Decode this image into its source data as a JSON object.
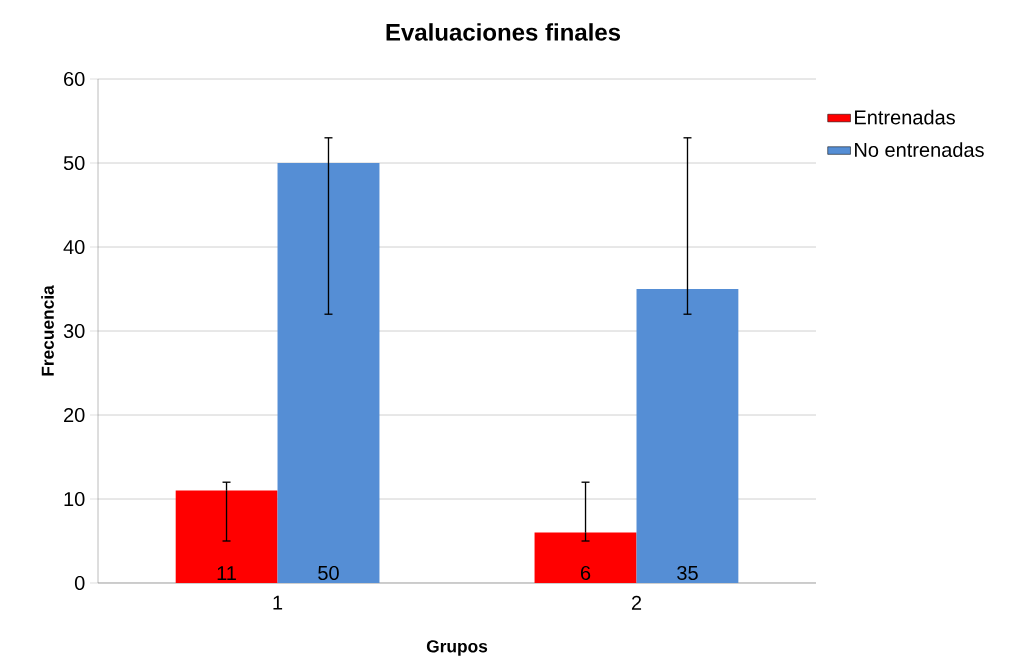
{
  "chart_data": {
    "type": "bar",
    "title": "Evaluaciones finales",
    "xlabel": "Grupos",
    "ylabel": "Frecuencia",
    "categories": [
      "1",
      "2"
    ],
    "series": [
      {
        "name": "Entrenadas",
        "color": "#ff0000",
        "values": [
          11,
          6
        ],
        "errors": [
          [
            5,
            12
          ],
          [
            5,
            12
          ]
        ]
      },
      {
        "name": "No entrenadas",
        "color": "#558ed5",
        "values": [
          50,
          35
        ],
        "errors": [
          [
            32,
            53
          ],
          [
            32,
            53
          ]
        ]
      }
    ],
    "ylim": [
      0,
      60
    ],
    "yticks": [
      0,
      10,
      20,
      30,
      40,
      50,
      60
    ],
    "grid": "y",
    "legend": "right",
    "data_labels": true
  }
}
